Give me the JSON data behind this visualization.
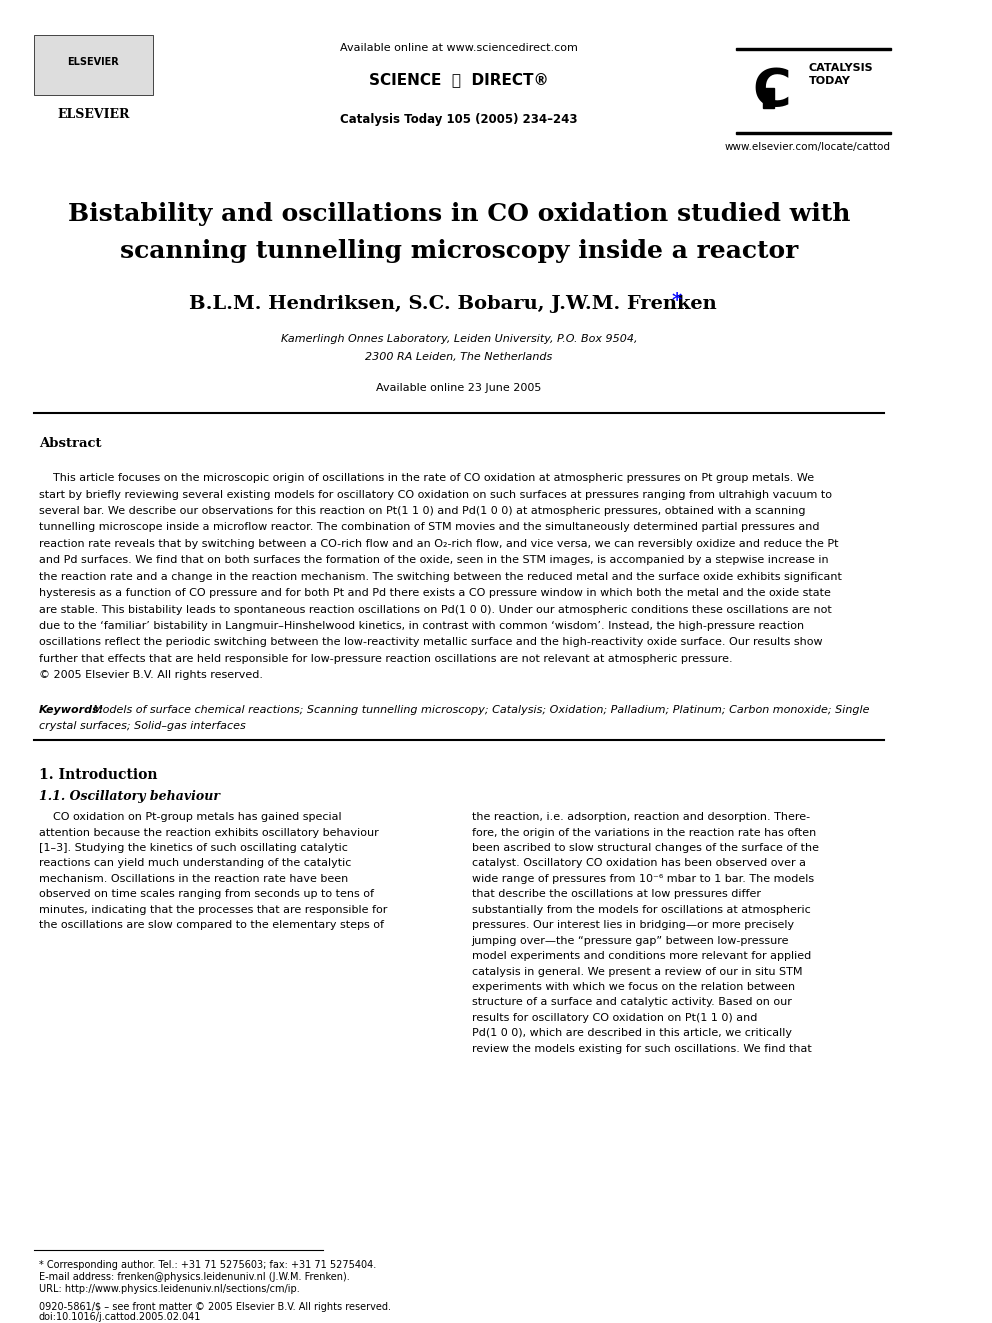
{
  "bg_color": "#ffffff",
  "header_available_online": "Available online at www.sciencedirect.com",
  "journal_info": "Catalysis Today 105 (2005) 234–243",
  "title_line1": "Bistability and oscillations in CO oxidation studied with",
  "title_line2": "scanning tunnelling microscopy inside a reactor",
  "authors": "B.L.M. Hendriksen, S.C. Bobaru, J.W.M. Frenken *",
  "affiliation1": "Kamerlingh Onnes Laboratory, Leiden University, P.O. Box 9504,",
  "affiliation2": "2300 RA Leiden, The Netherlands",
  "available_online_date": "Available online 23 June 2005",
  "abstract_heading": "Abstract",
  "abstract_text": "    This article focuses on the microscopic origin of oscillations in the rate of CO oxidation at atmospheric pressures on Pt group metals. We start by briefly reviewing several existing models for oscillatory CO oxidation on such surfaces at pressures ranging from ultrahigh vacuum to several bar. We describe our observations for this reaction on Pt(1 1 0) and Pd(1 0 0) at atmospheric pressures, obtained with a scanning tunnelling microscope inside a microflow reactor. The combination of STM movies and the simultaneously determined partial pressures and reaction rate reveals that by switching between a CO-rich flow and an O₂-rich flow, and vice versa, we can reversibly oxidize and reduce the Pt and Pd surfaces. We find that on both surfaces the formation of the oxide, seen in the STM images, is accompanied by a stepwise increase in the reaction rate and a change in the reaction mechanism. The switching between the reduced metal and the surface oxide exhibits significant hysteresis as a function of CO pressure and for both Pt and Pd there exists a CO pressure window in which both the metal and the oxide state are stable. This bistability leads to spontaneous reaction oscillations on Pd(1 0 0). Under our atmospheric conditions these oscillations are not due to the ‘familiar’ bistability in Langmuir–Hinshelwood kinetics, in contrast with common ‘wisdom’. Instead, the high-pressure reaction oscillations reflect the periodic switching between the low-reactivity metallic surface and the high-reactivity oxide surface. Our results show further that effects that are held responsible for low-pressure reaction oscillations are not relevant at atmospheric pressure.\n© 2005 Elsevier B.V. All rights reserved.",
  "keywords_label": "Keywords:",
  "keywords_text": " Models of surface chemical reactions; Scanning tunnelling microscopy; Catalysis; Oxidation; Palladium; Platinum; Carbon monoxide; Single crystal surfaces; Solid–gas interfaces",
  "section1_heading": "1. Introduction",
  "section11_heading": "1.1. Oscillatory behaviour",
  "intro_col1": "    CO oxidation on Pt-group metals has gained special attention because the reaction exhibits oscillatory behaviour [1–3]. Studying the kinetics of such oscillating catalytic reactions can yield much understanding of the catalytic mechanism. Oscillations in the reaction rate have been observed on time scales ranging from seconds up to tens of minutes, indicating that the processes that are responsible for the oscillations are slow compared to the elementary steps of",
  "intro_col2": "the reaction, i.e. adsorption, reaction and desorption. Therefore, the origin of the variations in the reaction rate has often been ascribed to slow structural changes of the surface of the catalyst. Oscillatory CO oxidation has been observed over a wide range of pressures from 10⁻⁶ mbar to 1 bar. The models that describe the oscillations at low pressures differ substantially from the models for oscillations at atmospheric pressures. Our interest lies in bridging—or more precisely jumping over—the “pressure gap” between low-pressure model experiments and conditions more relevant for applied catalysis in general. We present a review of our in situ STM experiments with which we focus on the relation between structure of a surface and catalytic activity. Based on our results for oscillatory CO oxidation on Pt(1 1 0) and Pd(1 0 0), which are described in this article, we critically review the models existing for such oscillations. We find that",
  "footnote_star": "* Corresponding author. Tel.: +31 71 5275603; fax: +31 71 5275404.",
  "footnote_email": "E-mail address: frenken@physics.leidenuniv.nl (J.W.M. Frenken).",
  "footnote_url": "URL: http://www.physics.leidenuniv.nl/sections/cm/ip.",
  "bottom_line1": "0920-5861/$ – see front matter © 2005 Elsevier B.V. All rights reserved.",
  "bottom_line2": "doi:10.1016/j.cattod.2005.02.041",
  "catalysis_today_text": "CATALYSIS\nTODAY",
  "www_text": "www.elsevier.com/locate/cattod"
}
